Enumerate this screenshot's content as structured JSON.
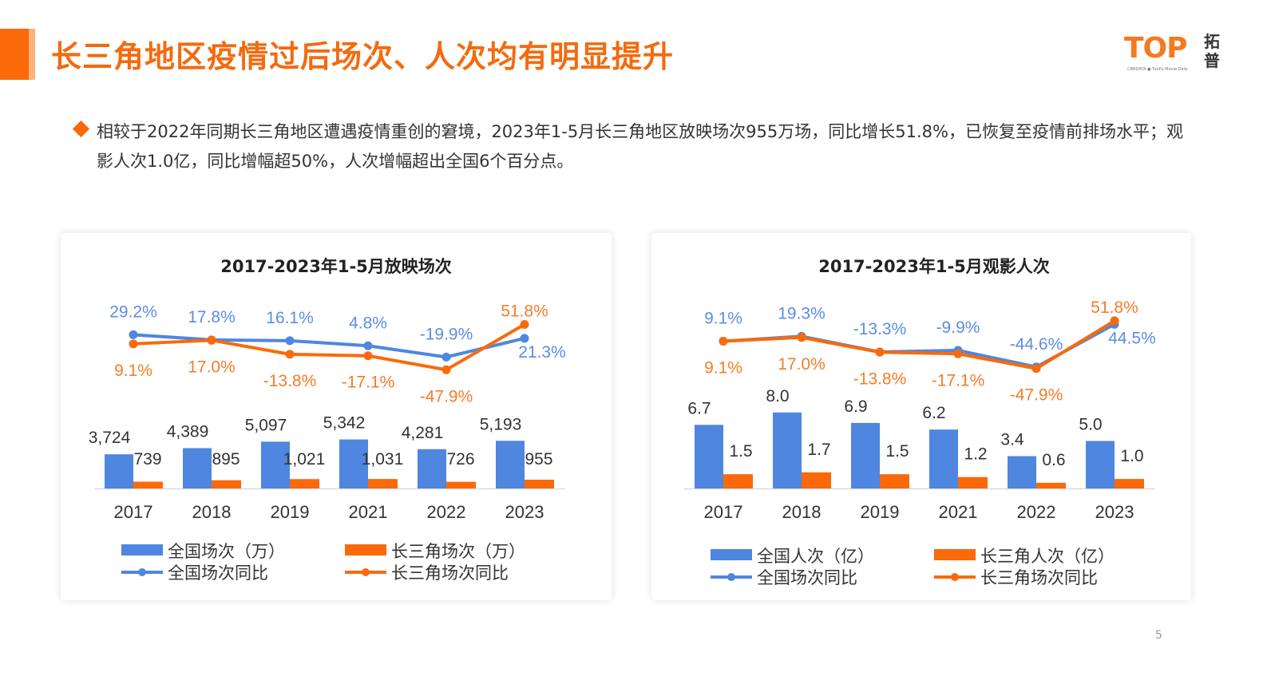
{
  "title": "长三角地区疫情过后场次、人次均有明显提升",
  "logo": {
    "text": "TOP",
    "cn": "拓普",
    "sub": "CBNDATA ● TuoPu Movie Data"
  },
  "bullet": "相较于2022年同期长三角地区遭遇疫情重创的窘境，2023年1-5月长三角地区放映场次955万场，同比增长51.8%，已恢复至疫情前排场水平；观影人次1.0亿，同比增幅超50%，人次增幅超出全国6个百分点。",
  "page_number": "5",
  "colors": {
    "blue": "#4f86e0",
    "orange": "#fa6a0a",
    "accent": "#f26b0f"
  },
  "chart_data": [
    {
      "type": "bar+line",
      "title": "2017-2023年1-5月放映场次",
      "categories": [
        "2017",
        "2018",
        "2019",
        "2021",
        "2022",
        "2023"
      ],
      "bar_series": [
        {
          "name": "全国场次（万）",
          "values": [
            3724,
            4389,
            5097,
            5342,
            4281,
            5193
          ],
          "labels": [
            "3,724",
            "4,389",
            "5,097",
            "5,342",
            "4,281",
            "5,193"
          ]
        },
        {
          "name": "长三角场次（万）",
          "values": [
            739,
            895,
            1021,
            1031,
            726,
            955
          ],
          "labels": [
            "739",
            "895",
            "1,021",
            "1,031",
            "726",
            "955"
          ]
        }
      ],
      "line_series": [
        {
          "name": "全国场次同比",
          "values": [
            29.2,
            17.8,
            16.1,
            4.8,
            -19.9,
            21.3
          ],
          "labels": [
            "29.2%",
            "17.8%",
            "16.1%",
            "4.8%",
            "-19.9%",
            "21.3%"
          ]
        },
        {
          "name": "长三角场次同比",
          "values": [
            9.1,
            17.0,
            -13.8,
            -17.1,
            -47.9,
            51.8
          ],
          "labels": [
            "9.1%",
            "17.0%",
            "-13.8%",
            "-17.1%",
            "-47.9%",
            "51.8%"
          ]
        }
      ],
      "legend": "bottom"
    },
    {
      "type": "bar+line",
      "title": "2017-2023年1-5月观影人次",
      "categories": [
        "2017",
        "2018",
        "2019",
        "2021",
        "2022",
        "2023"
      ],
      "bar_series": [
        {
          "name": "全国人次（亿）",
          "values": [
            6.7,
            8.0,
            6.9,
            6.2,
            3.4,
            5.0
          ],
          "labels": [
            "6.7",
            "8.0",
            "6.9",
            "6.2",
            "3.4",
            "5.0"
          ]
        },
        {
          "name": "长三角人次（亿）",
          "values": [
            1.5,
            1.7,
            1.5,
            1.2,
            0.6,
            1.0
          ],
          "labels": [
            "1.5",
            "1.7",
            "1.5",
            "1.2",
            "0.6",
            "1.0"
          ]
        }
      ],
      "line_series": [
        {
          "name": "全国场次同比",
          "values": [
            9.1,
            19.3,
            -13.3,
            -9.9,
            -44.6,
            44.5
          ],
          "labels": [
            "9.1%",
            "19.3%",
            "-13.3%",
            "-9.9%",
            "-44.6%",
            "44.5%"
          ]
        },
        {
          "name": "长三角场次同比",
          "values": [
            9.1,
            17.0,
            -13.8,
            -17.1,
            -47.9,
            51.8
          ],
          "labels": [
            "9.1%",
            "17.0%",
            "-13.8%",
            "-17.1%",
            "-47.9%",
            "51.8%"
          ]
        }
      ],
      "legend": "bottom"
    }
  ]
}
